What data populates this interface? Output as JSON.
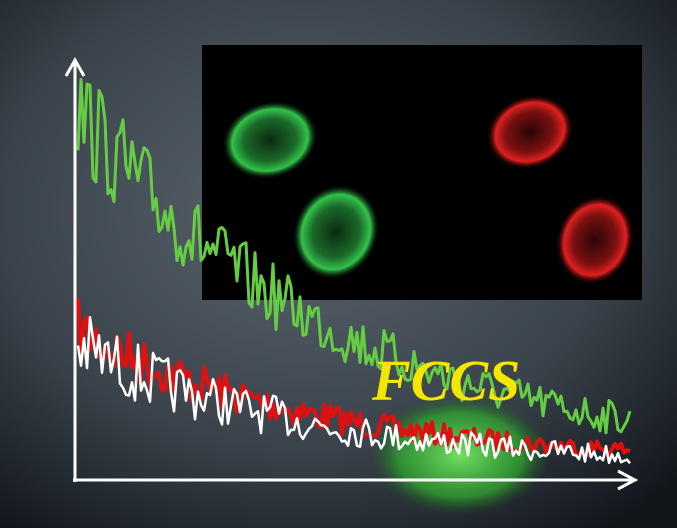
{
  "label": "FCCS"
}
